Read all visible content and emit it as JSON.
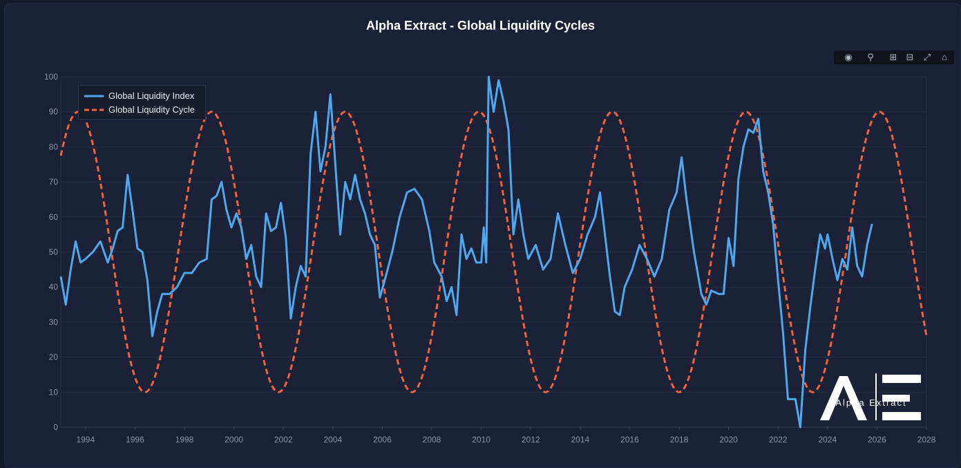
{
  "title": "Alpha Extract - Global Liquidity Cycles",
  "logo_text": "Alpha Extract",
  "modebar_icons": [
    "camera-icon",
    "zoom-icon",
    "zoom-in-icon",
    "zoom-out-icon",
    "autoscale-icon",
    "home-icon"
  ],
  "colors": {
    "index": "#4da8f0",
    "cycle": "#f0623a",
    "background": "#1a2035",
    "grid": "#283046"
  },
  "chart_data": {
    "type": "line",
    "title": "Alpha Extract - Global Liquidity Cycles",
    "xlabel": "",
    "ylabel": "",
    "xlim": [
      1993,
      2028
    ],
    "ylim": [
      0,
      100
    ],
    "x_ticks": [
      "1994",
      "1996",
      "1998",
      "2000",
      "2002",
      "2004",
      "2006",
      "2008",
      "2010",
      "2012",
      "2014",
      "2016",
      "2018",
      "2020",
      "2022",
      "2024",
      "2026",
      "2028"
    ],
    "y_ticks": [
      "0",
      "10",
      "20",
      "30",
      "40",
      "50",
      "60",
      "70",
      "80",
      "90",
      "100"
    ],
    "grid": true,
    "legend_position": "top-left",
    "series": [
      {
        "name": "Global Liquidity Index",
        "style": "solid",
        "points": [
          [
            1993.0,
            43
          ],
          [
            1993.2,
            35
          ],
          [
            1993.4,
            45
          ],
          [
            1993.6,
            53
          ],
          [
            1993.8,
            47
          ],
          [
            1994.0,
            48
          ],
          [
            1994.3,
            50
          ],
          [
            1994.6,
            53
          ],
          [
            1994.9,
            47
          ],
          [
            1995.1,
            51
          ],
          [
            1995.3,
            56
          ],
          [
            1995.5,
            57
          ],
          [
            1995.7,
            72
          ],
          [
            1995.9,
            62
          ],
          [
            1996.1,
            51
          ],
          [
            1996.3,
            50
          ],
          [
            1996.5,
            42
          ],
          [
            1996.7,
            26
          ],
          [
            1996.9,
            33
          ],
          [
            1997.1,
            38
          ],
          [
            1997.4,
            38
          ],
          [
            1997.7,
            40
          ],
          [
            1998.0,
            44
          ],
          [
            1998.3,
            44
          ],
          [
            1998.6,
            47
          ],
          [
            1998.9,
            48
          ],
          [
            1999.1,
            65
          ],
          [
            1999.3,
            66
          ],
          [
            1999.5,
            70
          ],
          [
            1999.7,
            62
          ],
          [
            1999.9,
            57
          ],
          [
            2000.1,
            61
          ],
          [
            2000.3,
            57
          ],
          [
            2000.5,
            48
          ],
          [
            2000.7,
            52
          ],
          [
            2000.9,
            43
          ],
          [
            2001.1,
            40
          ],
          [
            2001.3,
            61
          ],
          [
            2001.5,
            56
          ],
          [
            2001.7,
            57
          ],
          [
            2001.9,
            64
          ],
          [
            2002.1,
            54
          ],
          [
            2002.3,
            31
          ],
          [
            2002.5,
            40
          ],
          [
            2002.7,
            46
          ],
          [
            2002.9,
            43
          ],
          [
            2003.1,
            78
          ],
          [
            2003.3,
            90
          ],
          [
            2003.5,
            73
          ],
          [
            2003.7,
            80
          ],
          [
            2003.9,
            95
          ],
          [
            2004.1,
            75
          ],
          [
            2004.3,
            55
          ],
          [
            2004.5,
            70
          ],
          [
            2004.7,
            65
          ],
          [
            2004.9,
            72
          ],
          [
            2005.1,
            65
          ],
          [
            2005.3,
            61
          ],
          [
            2005.5,
            55
          ],
          [
            2005.7,
            52
          ],
          [
            2005.9,
            37
          ],
          [
            2006.1,
            42
          ],
          [
            2006.4,
            50
          ],
          [
            2006.7,
            60
          ],
          [
            2007.0,
            67
          ],
          [
            2007.3,
            68
          ],
          [
            2007.6,
            65
          ],
          [
            2007.9,
            56
          ],
          [
            2008.1,
            47
          ],
          [
            2008.4,
            43
          ],
          [
            2008.6,
            36
          ],
          [
            2008.8,
            40
          ],
          [
            2009.0,
            32
          ],
          [
            2009.2,
            55
          ],
          [
            2009.4,
            48
          ],
          [
            2009.6,
            51
          ],
          [
            2009.8,
            47
          ],
          [
            2010.0,
            47
          ],
          [
            2010.1,
            57
          ],
          [
            2010.2,
            47
          ],
          [
            2010.3,
            100
          ],
          [
            2010.5,
            90
          ],
          [
            2010.7,
            99
          ],
          [
            2010.9,
            93
          ],
          [
            2011.1,
            85
          ],
          [
            2011.3,
            55
          ],
          [
            2011.5,
            65
          ],
          [
            2011.7,
            55
          ],
          [
            2011.9,
            48
          ],
          [
            2012.2,
            52
          ],
          [
            2012.5,
            45
          ],
          [
            2012.8,
            48
          ],
          [
            2013.1,
            61
          ],
          [
            2013.4,
            52
          ],
          [
            2013.7,
            44
          ],
          [
            2014.0,
            48
          ],
          [
            2014.3,
            55
          ],
          [
            2014.6,
            60
          ],
          [
            2014.8,
            67
          ],
          [
            2015.0,
            55
          ],
          [
            2015.2,
            43
          ],
          [
            2015.4,
            33
          ],
          [
            2015.6,
            32
          ],
          [
            2015.8,
            40
          ],
          [
            2016.1,
            45
          ],
          [
            2016.4,
            52
          ],
          [
            2016.7,
            48
          ],
          [
            2017.0,
            43
          ],
          [
            2017.3,
            48
          ],
          [
            2017.6,
            62
          ],
          [
            2017.9,
            67
          ],
          [
            2018.1,
            77
          ],
          [
            2018.3,
            65
          ],
          [
            2018.6,
            50
          ],
          [
            2018.9,
            38
          ],
          [
            2019.1,
            35
          ],
          [
            2019.3,
            39
          ],
          [
            2019.6,
            38
          ],
          [
            2019.8,
            38
          ],
          [
            2020.0,
            54
          ],
          [
            2020.2,
            46
          ],
          [
            2020.4,
            71
          ],
          [
            2020.6,
            80
          ],
          [
            2020.8,
            85
          ],
          [
            2021.0,
            84
          ],
          [
            2021.2,
            88
          ],
          [
            2021.4,
            73
          ],
          [
            2021.6,
            67
          ],
          [
            2021.8,
            58
          ],
          [
            2022.0,
            42
          ],
          [
            2022.2,
            27
          ],
          [
            2022.4,
            8
          ],
          [
            2022.7,
            8
          ],
          [
            2022.9,
            0
          ],
          [
            2023.1,
            22
          ],
          [
            2023.3,
            34
          ],
          [
            2023.5,
            45
          ],
          [
            2023.7,
            55
          ],
          [
            2023.9,
            51
          ],
          [
            2024.0,
            55
          ],
          [
            2024.2,
            48
          ],
          [
            2024.4,
            42
          ],
          [
            2024.6,
            48
          ],
          [
            2024.8,
            45
          ],
          [
            2025.0,
            57
          ],
          [
            2025.2,
            46
          ],
          [
            2025.4,
            43
          ],
          [
            2025.6,
            52
          ],
          [
            2025.8,
            58
          ]
        ]
      },
      {
        "name": "Global Liquidity Cycle",
        "style": "dashed",
        "cycle": {
          "mid": 50,
          "amplitude": 40,
          "period_years": 5.4,
          "peak_year": 1993.7
        },
        "x_range": [
          1993,
          2028
        ]
      }
    ]
  }
}
